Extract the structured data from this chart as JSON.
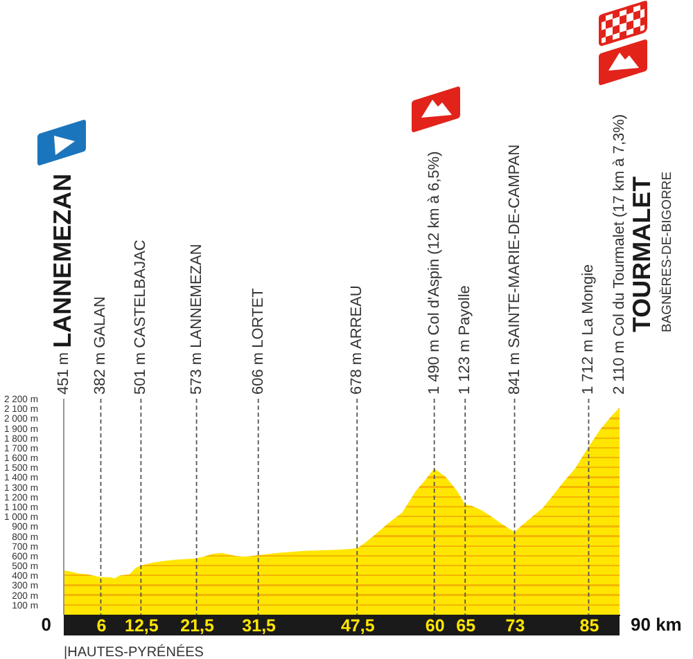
{
  "chart_data": {
    "type": "area",
    "color": "#ffe600",
    "x": [
      0,
      1,
      2.4,
      3.9,
      6,
      7.6,
      8.2,
      9.1,
      10.6,
      11.7,
      12.5,
      14.4,
      16.6,
      18.1,
      21.5,
      22.6,
      24.1,
      25.6,
      27.8,
      29.3,
      31.5,
      34.6,
      39,
      43.5,
      46.5,
      47.5,
      48.5,
      50.3,
      52.5,
      54.8,
      57,
      58.5,
      60,
      61.9,
      63.7,
      65,
      66,
      67.5,
      69,
      70.8,
      73,
      74,
      75.7,
      77.6,
      79.4,
      80.9,
      82.8,
      85,
      86.9,
      88.8,
      90
    ],
    "values": [
      451,
      440,
      420,
      410,
      382,
      380,
      370,
      400,
      410,
      480,
      501,
      530,
      550,
      560,
      573,
      590,
      620,
      630,
      600,
      590,
      606,
      630,
      650,
      660,
      670,
      678,
      720,
      810,
      930,
      1040,
      1260,
      1370,
      1490,
      1400,
      1260,
      1123,
      1110,
      1070,
      1010,
      930,
      841,
      900,
      990,
      1090,
      1230,
      1350,
      1490,
      1712,
      1890,
      2030,
      2110
    ],
    "xlim": [
      0,
      90
    ],
    "ylim": [
      0,
      2200
    ],
    "xticks": [
      6,
      {
        "value": 12.5,
        "label": "12,5"
      },
      {
        "value": 21.5,
        "label": "21,5"
      },
      {
        "value": 31.5,
        "label": "31,5"
      },
      {
        "value": 47.5,
        "label": "47,5"
      },
      60,
      65,
      73,
      85
    ],
    "yticks": [
      {
        "value": 100,
        "label": "100 m"
      },
      {
        "value": 200,
        "label": "200 m"
      },
      {
        "value": 300,
        "label": "300 m"
      },
      {
        "value": 400,
        "label": "400 m"
      },
      {
        "value": 500,
        "label": "500 m"
      },
      {
        "value": 600,
        "label": "600 m"
      },
      {
        "value": 700,
        "label": "700 m"
      },
      {
        "value": 800,
        "label": "800 m"
      },
      {
        "value": 900,
        "label": "900 m"
      },
      {
        "value": 1000,
        "label": "1 000 m"
      },
      {
        "value": 1100,
        "label": "1 100 m"
      },
      {
        "value": 1200,
        "label": "1 200 m"
      },
      {
        "value": 1300,
        "label": "1 300 m"
      },
      {
        "value": 1400,
        "label": "1 400 m"
      },
      {
        "value": 1500,
        "label": "1 500 m"
      },
      {
        "value": 1600,
        "label": "1 600 m"
      },
      {
        "value": 1700,
        "label": "1 700 m"
      },
      {
        "value": 1800,
        "label": "1 800 m"
      },
      {
        "value": 1900,
        "label": "1 900 m"
      },
      {
        "value": 2000,
        "label": "2 000 m"
      },
      {
        "value": 2100,
        "label": "2 100 m"
      },
      {
        "value": 2200,
        "label": "2 200 m"
      }
    ],
    "ref_lines": [
      {
        "axis": "x",
        "value": 0,
        "label": "451 m",
        "color": "#8c8c8c",
        "line_style": "solid"
      },
      {
        "axis": "x",
        "value": 6,
        "label": "382 m GALAN",
        "color": "#555555",
        "line_style": "dashed"
      },
      {
        "axis": "x",
        "value": 12.5,
        "label": "501 m CASTELBAJAC",
        "color": "#555555",
        "line_style": "dashed"
      },
      {
        "axis": "x",
        "value": 21.5,
        "label": "573 m LANNEMEZAN",
        "color": "#555555",
        "line_style": "dashed"
      },
      {
        "axis": "x",
        "value": 31.5,
        "label": "606 m LORTET",
        "color": "#555555",
        "line_style": "dashed"
      },
      {
        "axis": "x",
        "value": 47.5,
        "label": "678 m ARREAU",
        "color": "#555555",
        "line_style": "dashed"
      },
      {
        "axis": "x",
        "value": 60,
        "label": "1 490 m Col d'Aspin (12 km à 6,5%)",
        "color": "#555555",
        "line_style": "dashed"
      },
      {
        "axis": "x",
        "value": 65,
        "label": "1 123 m Payolle",
        "color": "#555555",
        "line_style": "dashed"
      },
      {
        "axis": "x",
        "value": 73,
        "label": "841 m SAINTE-MARIE-DE-CAMPAN",
        "color": "#555555",
        "line_style": "dashed"
      },
      {
        "axis": "x",
        "value": 85,
        "label": "1 712 m La Mongie",
        "color": "#555555",
        "line_style": "dashed"
      }
    ],
    "annotations": [
      "LANNEMEZAN",
      "2 110 m Col du Tourmalet (17 km à 7,3%)",
      "TOURMALET",
      "BAGNÈRES-DE-BIGORRE",
      "|HAUTES-PYRÉNÉES",
      "0",
      "90 km"
    ]
  }
}
